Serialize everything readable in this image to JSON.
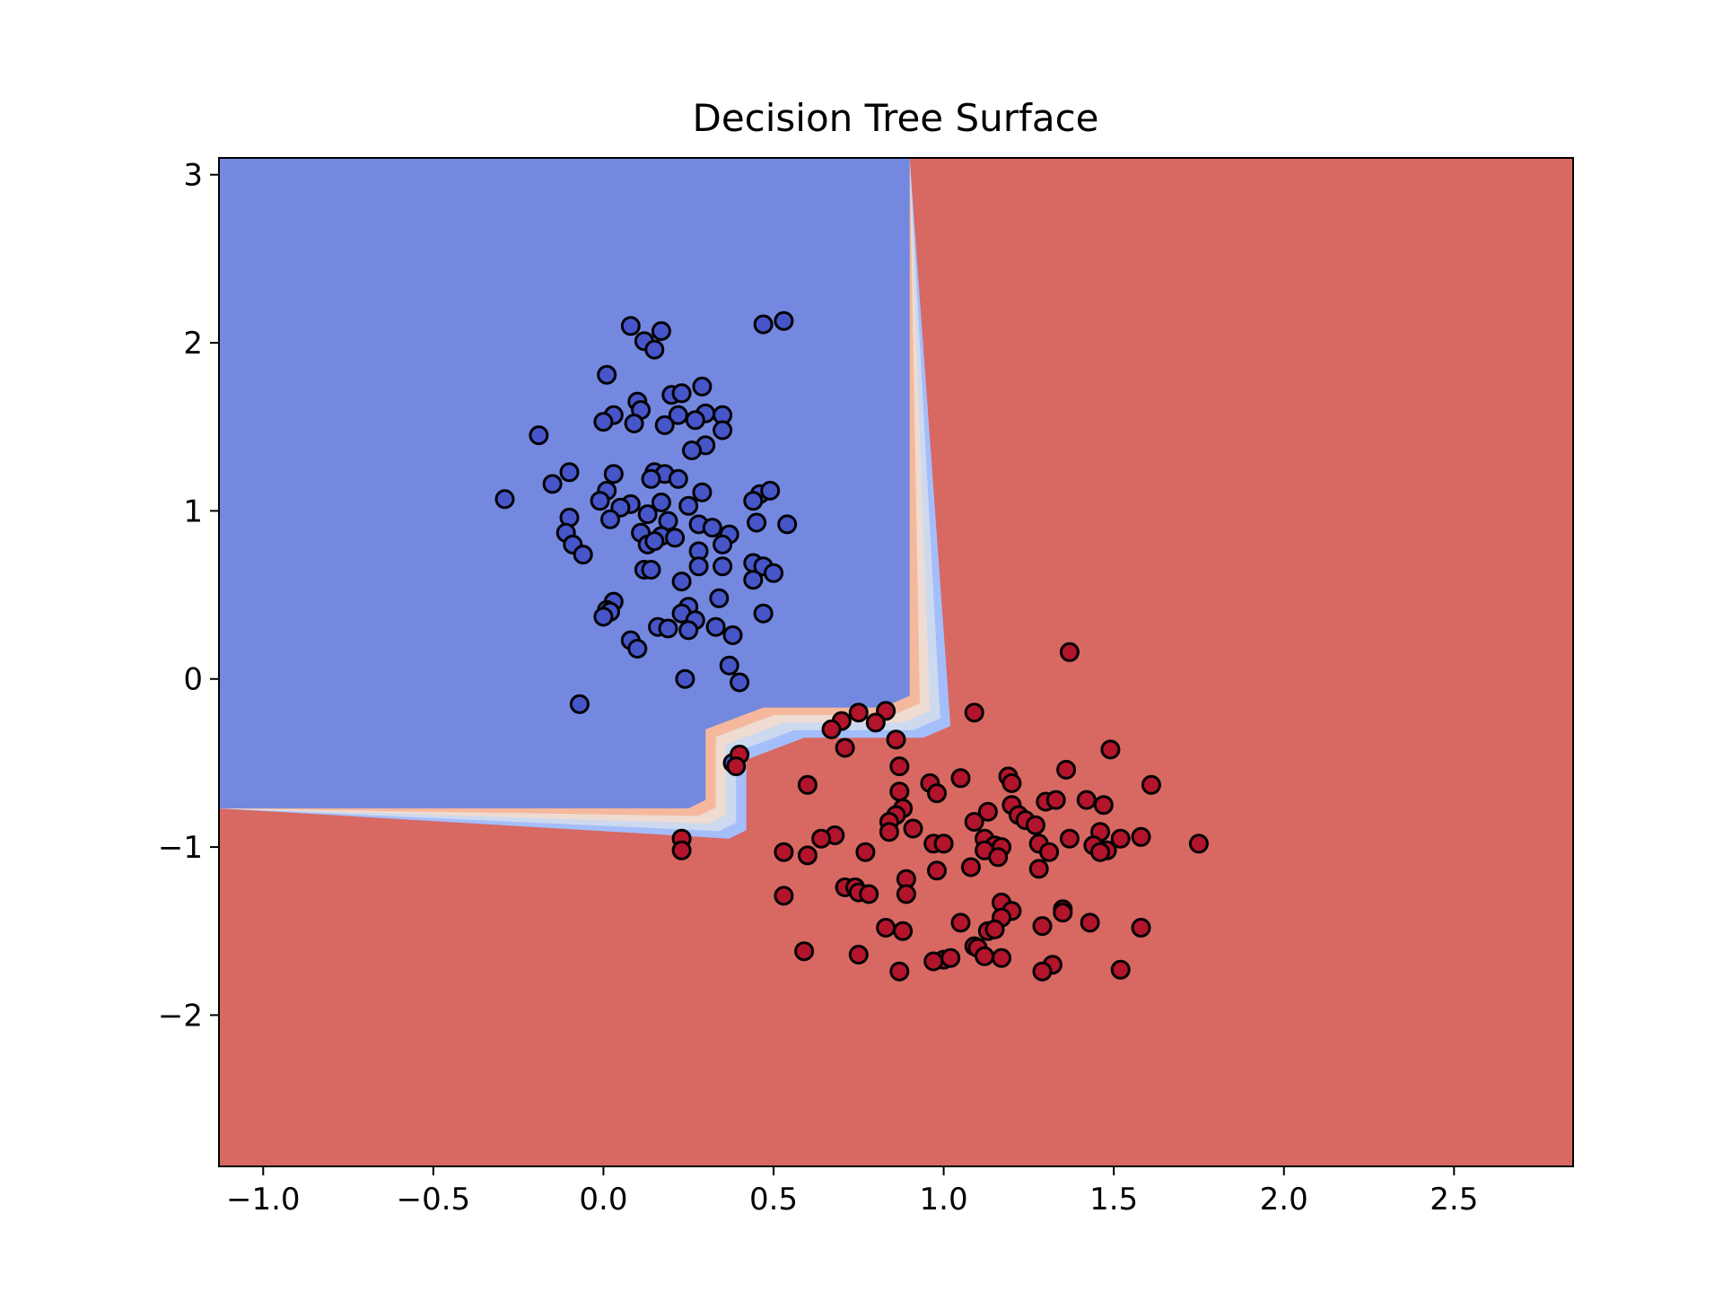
{
  "chart_data": {
    "type": "scatter",
    "title": "Decision Tree Surface",
    "xlabel": "",
    "ylabel": "",
    "xlim": [
      -1.13,
      2.85
    ],
    "ylim": [
      -2.9,
      3.1
    ],
    "grid": false,
    "x_ticks": [
      -1.0,
      -0.5,
      0.0,
      0.5,
      1.0,
      1.5,
      2.0,
      2.5
    ],
    "x_tick_labels": [
      "−1.0",
      "−0.5",
      "0.0",
      "0.5",
      "1.0",
      "1.5",
      "2.0",
      "2.5"
    ],
    "y_ticks": [
      -2,
      -1,
      0,
      1,
      2,
      3
    ],
    "y_tick_labels": [
      "−2",
      "−1",
      "0",
      "1",
      "2",
      "3"
    ],
    "colors": {
      "region_class_0": "#7488e0",
      "region_class_1": "#d76862",
      "point_class_0": "#4655c8",
      "point_class_1": "#b2142b",
      "point_edge": "#000000",
      "boundary_bands": [
        "#a4bdfb",
        "#cdd9ee",
        "#eedbd1",
        "#f6b89c"
      ]
    },
    "decision_regions": {
      "class_0_polygon": [
        [
          -1.13,
          3.1
        ],
        [
          0.9,
          3.1
        ],
        [
          0.9,
          -0.1
        ],
        [
          0.82,
          -0.17
        ],
        [
          0.47,
          -0.17
        ],
        [
          0.3,
          -0.3
        ],
        [
          0.3,
          -0.72
        ],
        [
          0.25,
          -0.77
        ],
        [
          -1.13,
          -0.77
        ]
      ],
      "boundary_offset": 0.03
    },
    "series": [
      {
        "class": 0,
        "points": [
          [
            0.08,
            2.1
          ],
          [
            0.17,
            2.07
          ],
          [
            0.12,
            2.01
          ],
          [
            0.15,
            1.96
          ],
          [
            0.47,
            2.11
          ],
          [
            0.53,
            2.13
          ],
          [
            0.01,
            1.81
          ],
          [
            0.29,
            1.74
          ],
          [
            0.2,
            1.69
          ],
          [
            0.23,
            1.7
          ],
          [
            0.1,
            1.65
          ],
          [
            0.11,
            1.6
          ],
          [
            0.03,
            1.57
          ],
          [
            0.22,
            1.57
          ],
          [
            0.3,
            1.58
          ],
          [
            0.35,
            1.57
          ],
          [
            0.0,
            1.53
          ],
          [
            0.09,
            1.52
          ],
          [
            0.18,
            1.51
          ],
          [
            0.27,
            1.54
          ],
          [
            0.35,
            1.48
          ],
          [
            -0.19,
            1.45
          ],
          [
            0.3,
            1.39
          ],
          [
            0.26,
            1.36
          ],
          [
            -0.1,
            1.23
          ],
          [
            0.03,
            1.22
          ],
          [
            0.15,
            1.23
          ],
          [
            0.18,
            1.22
          ],
          [
            0.22,
            1.19
          ],
          [
            0.14,
            1.19
          ],
          [
            -0.15,
            1.16
          ],
          [
            0.01,
            1.12
          ],
          [
            0.29,
            1.11
          ],
          [
            0.46,
            1.1
          ],
          [
            0.49,
            1.12
          ],
          [
            -0.29,
            1.07
          ],
          [
            -0.01,
            1.06
          ],
          [
            0.08,
            1.04
          ],
          [
            0.05,
            1.02
          ],
          [
            0.17,
            1.05
          ],
          [
            0.25,
            1.03
          ],
          [
            0.44,
            1.06
          ],
          [
            0.13,
            0.98
          ],
          [
            0.02,
            0.95
          ],
          [
            -0.1,
            0.96
          ],
          [
            0.19,
            0.94
          ],
          [
            0.28,
            0.92
          ],
          [
            0.32,
            0.9
          ],
          [
            0.45,
            0.93
          ],
          [
            0.54,
            0.92
          ],
          [
            -0.11,
            0.87
          ],
          [
            0.11,
            0.87
          ],
          [
            0.17,
            0.85
          ],
          [
            0.37,
            0.86
          ],
          [
            -0.09,
            0.8
          ],
          [
            0.13,
            0.8
          ],
          [
            0.21,
            0.84
          ],
          [
            0.15,
            0.82
          ],
          [
            0.35,
            0.8
          ],
          [
            -0.06,
            0.74
          ],
          [
            0.28,
            0.76
          ],
          [
            0.44,
            0.69
          ],
          [
            0.47,
            0.67
          ],
          [
            0.12,
            0.65
          ],
          [
            0.14,
            0.65
          ],
          [
            0.28,
            0.67
          ],
          [
            0.35,
            0.67
          ],
          [
            0.5,
            0.63
          ],
          [
            0.44,
            0.59
          ],
          [
            0.23,
            0.58
          ],
          [
            0.34,
            0.48
          ],
          [
            0.03,
            0.46
          ],
          [
            0.01,
            0.41
          ],
          [
            0.02,
            0.4
          ],
          [
            0.25,
            0.43
          ],
          [
            0.0,
            0.37
          ],
          [
            0.23,
            0.39
          ],
          [
            0.47,
            0.39
          ],
          [
            0.27,
            0.35
          ],
          [
            0.16,
            0.31
          ],
          [
            0.19,
            0.3
          ],
          [
            0.33,
            0.31
          ],
          [
            0.25,
            0.29
          ],
          [
            0.08,
            0.23
          ],
          [
            0.38,
            0.26
          ],
          [
            0.1,
            0.18
          ],
          [
            0.37,
            0.08
          ],
          [
            0.24,
            0.0
          ],
          [
            0.4,
            -0.02
          ],
          [
            -0.07,
            -0.15
          ],
          [
            0.38,
            -0.5
          ]
        ]
      },
      {
        "class": 1,
        "points": [
          [
            1.37,
            0.16
          ],
          [
            0.83,
            -0.19
          ],
          [
            0.75,
            -0.2
          ],
          [
            1.09,
            -0.2
          ],
          [
            0.7,
            -0.25
          ],
          [
            0.67,
            -0.3
          ],
          [
            0.8,
            -0.26
          ],
          [
            0.86,
            -0.36
          ],
          [
            0.71,
            -0.41
          ],
          [
            1.49,
            -0.42
          ],
          [
            0.4,
            -0.45
          ],
          [
            0.39,
            -0.52
          ],
          [
            0.87,
            -0.52
          ],
          [
            1.36,
            -0.54
          ],
          [
            1.19,
            -0.58
          ],
          [
            1.05,
            -0.59
          ],
          [
            1.2,
            -0.62
          ],
          [
            0.96,
            -0.62
          ],
          [
            1.61,
            -0.63
          ],
          [
            0.6,
            -0.63
          ],
          [
            0.98,
            -0.68
          ],
          [
            0.87,
            -0.67
          ],
          [
            1.42,
            -0.72
          ],
          [
            1.3,
            -0.73
          ],
          [
            1.33,
            -0.72
          ],
          [
            1.47,
            -0.75
          ],
          [
            1.2,
            -0.75
          ],
          [
            0.88,
            -0.77
          ],
          [
            1.13,
            -0.79
          ],
          [
            0.86,
            -0.81
          ],
          [
            1.22,
            -0.81
          ],
          [
            1.24,
            -0.84
          ],
          [
            0.84,
            -0.85
          ],
          [
            1.09,
            -0.85
          ],
          [
            1.27,
            -0.87
          ],
          [
            0.91,
            -0.89
          ],
          [
            0.84,
            -0.91
          ],
          [
            1.46,
            -0.91
          ],
          [
            0.68,
            -0.93
          ],
          [
            0.64,
            -0.95
          ],
          [
            1.12,
            -0.95
          ],
          [
            1.37,
            -0.95
          ],
          [
            1.52,
            -0.95
          ],
          [
            1.58,
            -0.94
          ],
          [
            0.23,
            -0.95
          ],
          [
            0.97,
            -0.98
          ],
          [
            1.0,
            -0.98
          ],
          [
            1.28,
            -0.98
          ],
          [
            1.15,
            -0.99
          ],
          [
            1.44,
            -0.99
          ],
          [
            1.12,
            -1.02
          ],
          [
            1.17,
            -1.0
          ],
          [
            1.48,
            -1.02
          ],
          [
            1.31,
            -1.03
          ],
          [
            1.46,
            -1.03
          ],
          [
            0.23,
            -1.02
          ],
          [
            0.53,
            -1.03
          ],
          [
            0.6,
            -1.05
          ],
          [
            0.77,
            -1.03
          ],
          [
            1.16,
            -1.06
          ],
          [
            0.98,
            -1.14
          ],
          [
            1.28,
            -1.13
          ],
          [
            0.89,
            -1.19
          ],
          [
            1.08,
            -1.12
          ],
          [
            1.75,
            -0.98
          ],
          [
            0.71,
            -1.24
          ],
          [
            0.74,
            -1.24
          ],
          [
            0.75,
            -1.27
          ],
          [
            0.78,
            -1.28
          ],
          [
            0.89,
            -1.28
          ],
          [
            0.53,
            -1.29
          ],
          [
            1.17,
            -1.33
          ],
          [
            1.35,
            -1.37
          ],
          [
            1.2,
            -1.38
          ],
          [
            1.35,
            -1.39
          ],
          [
            1.05,
            -1.45
          ],
          [
            1.17,
            -1.42
          ],
          [
            1.43,
            -1.45
          ],
          [
            0.83,
            -1.48
          ],
          [
            0.88,
            -1.5
          ],
          [
            1.13,
            -1.5
          ],
          [
            1.15,
            -1.49
          ],
          [
            1.29,
            -1.47
          ],
          [
            1.58,
            -1.48
          ],
          [
            1.09,
            -1.59
          ],
          [
            1.1,
            -1.6
          ],
          [
            1.12,
            -1.65
          ],
          [
            1.17,
            -1.66
          ],
          [
            1.0,
            -1.67
          ],
          [
            0.97,
            -1.68
          ],
          [
            0.59,
            -1.62
          ],
          [
            0.75,
            -1.64
          ],
          [
            1.32,
            -1.7
          ],
          [
            1.29,
            -1.74
          ],
          [
            1.52,
            -1.73
          ],
          [
            0.87,
            -1.74
          ],
          [
            1.02,
            -1.66
          ]
        ]
      }
    ]
  }
}
